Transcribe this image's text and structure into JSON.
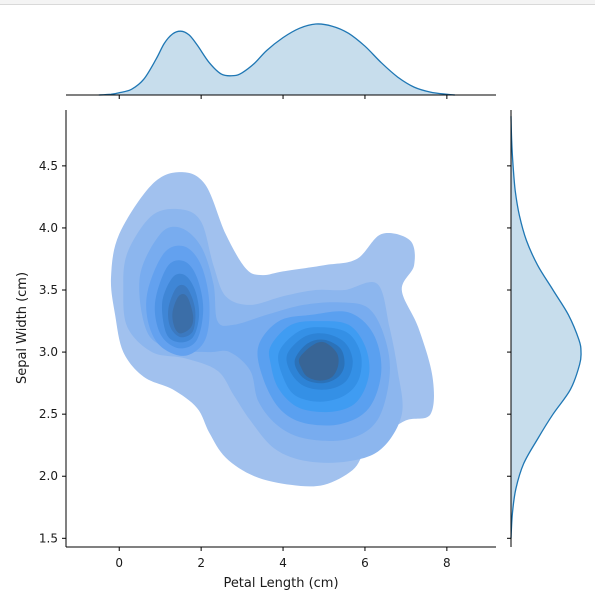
{
  "chart_data": {
    "type": "kde-jointplot",
    "xlabel": "Petal Length (cm)",
    "ylabel": "Sepal Width (cm)",
    "xlim": [
      -1.3,
      9.2
    ],
    "ylim": [
      1.43,
      4.95
    ],
    "xticks": [
      0,
      2,
      4,
      6,
      8
    ],
    "yticks": [
      1.5,
      2.0,
      2.5,
      3.0,
      3.5,
      4.0,
      4.5
    ],
    "ytick_labels": [
      "1.5",
      "2.0",
      "2.5",
      "3.0",
      "3.5",
      "4.0",
      "4.5"
    ],
    "fill_color": "#1f77b4",
    "marginal_fill_color": "#1f77b4",
    "marginal_x_density": {
      "x": [
        -0.5,
        -0.2,
        0.0,
        0.3,
        0.6,
        0.9,
        1.1,
        1.3,
        1.5,
        1.7,
        1.9,
        2.2,
        2.5,
        2.8,
        3.0,
        3.3,
        3.6,
        4.0,
        4.4,
        4.8,
        5.2,
        5.6,
        6.0,
        6.4,
        6.8,
        7.2,
        7.6,
        8.0,
        8.2
      ],
      "density": [
        0.0,
        0.01,
        0.03,
        0.08,
        0.22,
        0.5,
        0.72,
        0.85,
        0.89,
        0.84,
        0.7,
        0.45,
        0.29,
        0.27,
        0.31,
        0.44,
        0.62,
        0.8,
        0.93,
        0.99,
        0.96,
        0.86,
        0.68,
        0.45,
        0.25,
        0.11,
        0.04,
        0.01,
        0.0
      ]
    },
    "marginal_y_density": {
      "y": [
        1.5,
        1.7,
        1.9,
        2.1,
        2.3,
        2.5,
        2.7,
        2.9,
        3.0,
        3.1,
        3.3,
        3.5,
        3.7,
        3.9,
        4.1,
        4.3,
        4.5,
        4.7,
        4.9
      ],
      "density": [
        0.0,
        0.02,
        0.07,
        0.18,
        0.38,
        0.6,
        0.85,
        0.98,
        1.0,
        0.97,
        0.82,
        0.6,
        0.38,
        0.22,
        0.12,
        0.06,
        0.03,
        0.01,
        0.0
      ]
    },
    "contour_levels": [
      {
        "level": 1,
        "color": "#a1c1ee",
        "outline": [
          [
            -0.2,
            3.6
          ],
          [
            -0.1,
            3.3
          ],
          [
            0.1,
            3.0
          ],
          [
            0.6,
            2.8
          ],
          [
            1.3,
            2.7
          ],
          [
            1.9,
            2.55
          ],
          [
            2.2,
            2.35
          ],
          [
            2.6,
            2.15
          ],
          [
            3.3,
            2.0
          ],
          [
            4.2,
            1.93
          ],
          [
            5.0,
            1.93
          ],
          [
            5.7,
            2.05
          ],
          [
            6.0,
            2.2
          ],
          [
            6.4,
            2.32
          ],
          [
            7.0,
            2.45
          ],
          [
            7.6,
            2.5
          ],
          [
            7.65,
            2.8
          ],
          [
            7.3,
            3.2
          ],
          [
            6.9,
            3.5
          ],
          [
            7.2,
            3.7
          ],
          [
            7.1,
            3.9
          ],
          [
            6.4,
            3.95
          ],
          [
            5.8,
            3.75
          ],
          [
            5.0,
            3.7
          ],
          [
            4.0,
            3.65
          ],
          [
            3.5,
            3.62
          ],
          [
            3.1,
            3.67
          ],
          [
            2.6,
            3.95
          ],
          [
            2.1,
            4.35
          ],
          [
            1.5,
            4.45
          ],
          [
            0.8,
            4.35
          ],
          [
            0.0,
            3.95
          ]
        ]
      },
      {
        "level": 2,
        "color": "#8cb6ee",
        "outline": [
          [
            0.2,
            3.8
          ],
          [
            0.8,
            4.1
          ],
          [
            1.5,
            4.15
          ],
          [
            2.0,
            4.05
          ],
          [
            2.3,
            3.7
          ],
          [
            2.6,
            3.45
          ],
          [
            3.2,
            3.38
          ],
          [
            4.0,
            3.45
          ],
          [
            4.8,
            3.5
          ],
          [
            5.5,
            3.5
          ],
          [
            6.3,
            3.55
          ],
          [
            6.6,
            3.2
          ],
          [
            6.8,
            2.85
          ],
          [
            6.9,
            2.5
          ],
          [
            6.4,
            2.22
          ],
          [
            5.6,
            2.12
          ],
          [
            4.6,
            2.12
          ],
          [
            3.8,
            2.22
          ],
          [
            3.2,
            2.45
          ],
          [
            2.8,
            2.65
          ],
          [
            2.4,
            2.85
          ],
          [
            1.6,
            2.95
          ],
          [
            0.8,
            3.0
          ],
          [
            0.2,
            3.2
          ],
          [
            0.1,
            3.5
          ]
        ]
      },
      {
        "level": 3,
        "color": "#78acef",
        "outline": [
          [
            0.5,
            3.6
          ],
          [
            1.0,
            3.95
          ],
          [
            1.5,
            4.0
          ],
          [
            2.0,
            3.85
          ],
          [
            2.3,
            3.55
          ],
          [
            2.4,
            3.25
          ],
          [
            2.8,
            3.22
          ],
          [
            3.6,
            3.3
          ],
          [
            4.5,
            3.38
          ],
          [
            5.4,
            3.4
          ],
          [
            6.1,
            3.35
          ],
          [
            6.5,
            3.1
          ],
          [
            6.6,
            2.8
          ],
          [
            6.3,
            2.45
          ],
          [
            5.6,
            2.3
          ],
          [
            4.6,
            2.3
          ],
          [
            3.9,
            2.4
          ],
          [
            3.4,
            2.6
          ],
          [
            3.2,
            2.85
          ],
          [
            2.7,
            3.0
          ],
          [
            2.2,
            3.0
          ],
          [
            1.4,
            3.02
          ],
          [
            0.7,
            3.15
          ]
        ]
      },
      {
        "level": 4,
        "color": "#63a1ef",
        "outline": [
          [
            0.7,
            3.5
          ],
          [
            1.1,
            3.8
          ],
          [
            1.6,
            3.85
          ],
          [
            2.0,
            3.7
          ],
          [
            2.2,
            3.4
          ],
          [
            2.1,
            3.1
          ],
          [
            1.6,
            2.97
          ],
          [
            1.0,
            3.05
          ],
          [
            0.7,
            3.25
          ]
        ]
      },
      {
        "level": 4,
        "color": "#5aa0f0",
        "outline": [
          [
            3.4,
            3.05
          ],
          [
            3.9,
            3.25
          ],
          [
            4.7,
            3.3
          ],
          [
            5.6,
            3.32
          ],
          [
            6.2,
            3.15
          ],
          [
            6.4,
            2.85
          ],
          [
            6.1,
            2.55
          ],
          [
            5.4,
            2.42
          ],
          [
            4.5,
            2.43
          ],
          [
            3.9,
            2.55
          ],
          [
            3.5,
            2.8
          ]
        ]
      },
      {
        "level": 5,
        "color": "#4f94e6",
        "outline": [
          [
            0.9,
            3.45
          ],
          [
            1.2,
            3.7
          ],
          [
            1.6,
            3.73
          ],
          [
            1.9,
            3.6
          ],
          [
            2.05,
            3.35
          ],
          [
            1.9,
            3.1
          ],
          [
            1.5,
            3.03
          ],
          [
            1.1,
            3.1
          ],
          [
            0.9,
            3.25
          ]
        ]
      },
      {
        "level": 5,
        "color": "#3f9cf2",
        "outline": [
          [
            3.7,
            3.05
          ],
          [
            4.2,
            3.22
          ],
          [
            4.9,
            3.25
          ],
          [
            5.6,
            3.22
          ],
          [
            6.0,
            3.05
          ],
          [
            6.1,
            2.82
          ],
          [
            5.8,
            2.6
          ],
          [
            5.2,
            2.52
          ],
          [
            4.4,
            2.55
          ],
          [
            3.9,
            2.7
          ],
          [
            3.7,
            2.9
          ]
        ]
      },
      {
        "level": 6,
        "color": "#3f86d6",
        "outline": [
          [
            1.05,
            3.4
          ],
          [
            1.3,
            3.6
          ],
          [
            1.6,
            3.62
          ],
          [
            1.85,
            3.5
          ],
          [
            1.95,
            3.3
          ],
          [
            1.8,
            3.12
          ],
          [
            1.45,
            3.08
          ],
          [
            1.15,
            3.15
          ]
        ]
      },
      {
        "level": 6,
        "color": "#3490e6",
        "outline": [
          [
            3.9,
            3.0
          ],
          [
            4.4,
            3.17
          ],
          [
            5.0,
            3.2
          ],
          [
            5.6,
            3.15
          ],
          [
            5.9,
            2.98
          ],
          [
            5.85,
            2.78
          ],
          [
            5.5,
            2.65
          ],
          [
            4.9,
            2.6
          ],
          [
            4.3,
            2.65
          ],
          [
            4.0,
            2.8
          ]
        ]
      },
      {
        "level": 7,
        "color": "#3b79c0",
        "outline": [
          [
            1.2,
            3.35
          ],
          [
            1.4,
            3.52
          ],
          [
            1.65,
            3.52
          ],
          [
            1.85,
            3.35
          ],
          [
            1.8,
            3.17
          ],
          [
            1.5,
            3.12
          ],
          [
            1.25,
            3.2
          ]
        ]
      },
      {
        "level": 7,
        "color": "#2d83d6",
        "outline": [
          [
            4.1,
            2.98
          ],
          [
            4.5,
            3.12
          ],
          [
            5.0,
            3.15
          ],
          [
            5.5,
            3.08
          ],
          [
            5.7,
            2.93
          ],
          [
            5.55,
            2.77
          ],
          [
            5.1,
            2.7
          ],
          [
            4.55,
            2.72
          ],
          [
            4.2,
            2.83
          ]
        ]
      },
      {
        "level": 8,
        "color": "#3b6ea8",
        "outline": [
          [
            1.3,
            3.32
          ],
          [
            1.45,
            3.45
          ],
          [
            1.65,
            3.45
          ],
          [
            1.8,
            3.3
          ],
          [
            1.75,
            3.2
          ],
          [
            1.5,
            3.15
          ],
          [
            1.35,
            3.2
          ]
        ]
      },
      {
        "level": 8,
        "color": "#2b72b9",
        "outline": [
          [
            4.3,
            2.95
          ],
          [
            4.6,
            3.07
          ],
          [
            5.0,
            3.1
          ],
          [
            5.4,
            3.03
          ],
          [
            5.5,
            2.9
          ],
          [
            5.35,
            2.8
          ],
          [
            5.0,
            2.75
          ],
          [
            4.6,
            2.77
          ],
          [
            4.35,
            2.85
          ]
        ]
      },
      {
        "level": 9,
        "color": "#386596",
        "outline": [
          [
            4.4,
            2.95
          ],
          [
            4.7,
            3.05
          ],
          [
            5.0,
            3.08
          ],
          [
            5.3,
            3.0
          ],
          [
            5.35,
            2.9
          ],
          [
            5.2,
            2.8
          ],
          [
            4.9,
            2.77
          ],
          [
            4.6,
            2.8
          ],
          [
            4.45,
            2.87
          ]
        ]
      }
    ]
  }
}
